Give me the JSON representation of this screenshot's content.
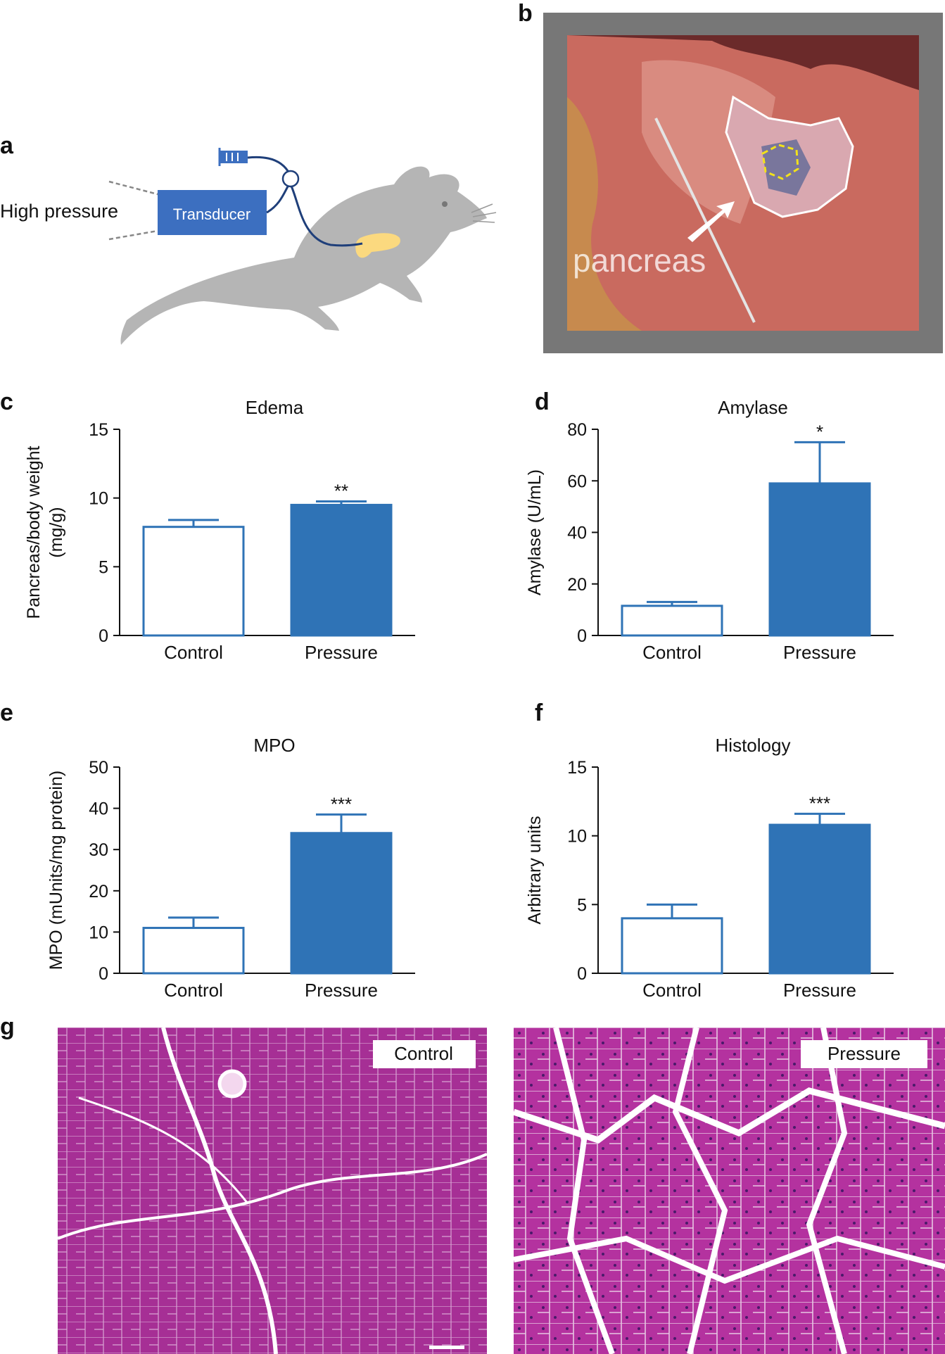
{
  "colors": {
    "accent": "#2f73b6",
    "mouse": "#b5b5b5",
    "pancreas": "#fbd97f",
    "tissue": "#b8329a"
  },
  "panels": {
    "a": {
      "letter": "a",
      "high_pressure": "High pressure",
      "transducer": "Transducer"
    },
    "b": {
      "letter": "b",
      "pancreas_label": "pancreas"
    },
    "g": {
      "letter": "g",
      "control_label": "Control",
      "pressure_label": "Pressure"
    }
  },
  "chart_data": [
    {
      "id": "c",
      "letter": "c",
      "type": "bar",
      "title": "Edema",
      "ylabel_lines": [
        "Pancreas/body weight",
        "(mg/g)"
      ],
      "categories": [
        "Control",
        "Pressure"
      ],
      "values": [
        7.9,
        9.5
      ],
      "errors": [
        0.5,
        0.25
      ],
      "significance": [
        "",
        "**"
      ],
      "ylim": [
        0,
        15
      ],
      "yticks": [
        0,
        5,
        10,
        15
      ]
    },
    {
      "id": "d",
      "letter": "d",
      "type": "bar",
      "title": "Amylase",
      "ylabel_lines": [
        "Amylase (U/mL)"
      ],
      "categories": [
        "Control",
        "Pressure"
      ],
      "values": [
        11.5,
        59
      ],
      "errors": [
        1.5,
        16
      ],
      "significance": [
        "",
        "*"
      ],
      "ylim": [
        0,
        80
      ],
      "yticks": [
        0,
        20,
        40,
        60,
        80
      ]
    },
    {
      "id": "e",
      "letter": "e",
      "type": "bar",
      "title": "MPO",
      "ylabel_lines": [
        "MPO (mUnits/mg protein)"
      ],
      "categories": [
        "Control",
        "Pressure"
      ],
      "values": [
        11,
        34
      ],
      "errors": [
        2.5,
        4.5
      ],
      "significance": [
        "",
        "***"
      ],
      "ylim": [
        0,
        50
      ],
      "yticks": [
        0,
        10,
        20,
        30,
        40,
        50
      ]
    },
    {
      "id": "f",
      "letter": "f",
      "type": "bar",
      "title": "Histology",
      "ylabel_lines": [
        "Arbitrary units"
      ],
      "categories": [
        "Control",
        "Pressure"
      ],
      "values": [
        4,
        10.8
      ],
      "errors": [
        1,
        0.8
      ],
      "significance": [
        "",
        "***"
      ],
      "ylim": [
        0,
        15
      ],
      "yticks": [
        0,
        5,
        10,
        15
      ]
    }
  ]
}
